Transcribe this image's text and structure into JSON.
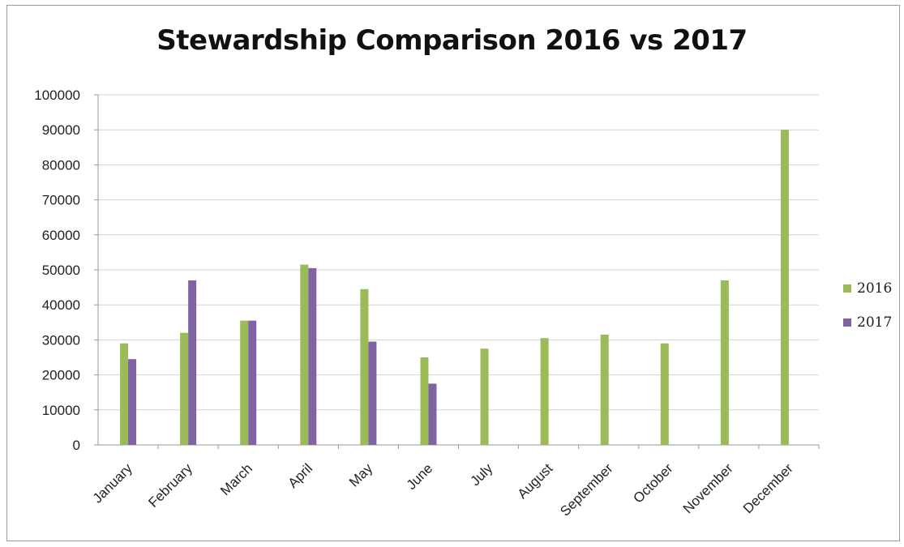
{
  "chart_data": {
    "type": "bar",
    "title": "Stewardship Comparison 2016 vs 2017",
    "xlabel": "",
    "ylabel": "",
    "ylim": [
      0,
      100000
    ],
    "yticks": [
      0,
      10000,
      20000,
      30000,
      40000,
      50000,
      60000,
      70000,
      80000,
      90000,
      100000
    ],
    "ytick_labels": [
      "0",
      "10000",
      "20000",
      "30000",
      "40000",
      "50000",
      "60000",
      "70000",
      "80000",
      "90000",
      "100000"
    ],
    "categories": [
      "January",
      "February",
      "March",
      "April",
      "May",
      "June",
      "July",
      "August",
      "September",
      "October",
      "November",
      "December"
    ],
    "series": [
      {
        "name": "2016",
        "color": "#9bbb59",
        "values": [
          29000,
          32000,
          35500,
          51500,
          44500,
          25000,
          27500,
          30500,
          31500,
          29000,
          47000,
          90000
        ]
      },
      {
        "name": "2017",
        "color": "#8064a2",
        "values": [
          24500,
          47000,
          35500,
          50500,
          29500,
          17500,
          null,
          null,
          null,
          null,
          null,
          null
        ]
      }
    ],
    "grid": true,
    "legend_position": "right"
  }
}
